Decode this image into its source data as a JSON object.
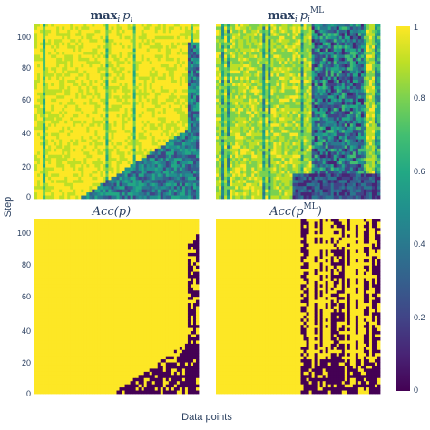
{
  "chart_data": {
    "type": "heatmap",
    "xlabel": "Data points",
    "ylabel": "Step",
    "colorscale": "viridis",
    "colors": {
      "low": "#440154",
      "mid": "#21908d",
      "high": "#fde725"
    },
    "colorbar": {
      "range": [
        0,
        1
      ],
      "ticks": [
        "0",
        "0.2",
        "0.4",
        "0.6",
        "0.8",
        "1"
      ]
    },
    "y_range": [
      0,
      110
    ],
    "y_ticks": [
      "0",
      "20",
      "40",
      "60",
      "80",
      "100"
    ],
    "panels": [
      {
        "title": "max",
        "title_sub": "i",
        "title_var": "p",
        "title_var_sub": "i",
        "title_var_sup": "",
        "kind": "confidence",
        "description_values": "mostly near 1; dark low-confidence wedge at lower right and scattered dark stripes"
      },
      {
        "title": "max",
        "title_sub": "i",
        "title_var": "p",
        "title_var_sub": "i",
        "title_var_sup": "ML",
        "kind": "confidence",
        "description_values": "lower confidence spread across many columns; dense dark band in right third"
      },
      {
        "title": "Acc(p)",
        "kind": "accuracy",
        "description_values": "binary 0/1; correct everywhere except lower-right triangular region"
      },
      {
        "title": "Acc(p",
        "title_sup": "ML",
        "title_tail": ")",
        "kind": "accuracy",
        "description_values": "binary 0/1; many incorrect columns in right half across all steps"
      }
    ]
  }
}
